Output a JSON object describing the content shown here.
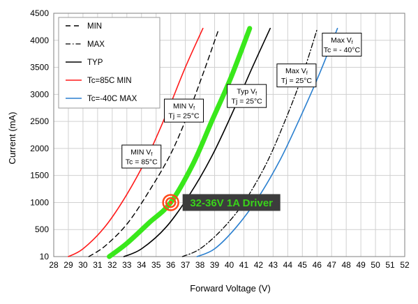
{
  "chart_data": {
    "type": "line",
    "xlabel": "Forward Voltage (V)",
    "ylabel": "Current (mA)",
    "xlim": [
      28,
      52
    ],
    "ylim": [
      10,
      4500
    ],
    "x_ticks": [
      "28",
      "29",
      "30",
      "31",
      "32",
      "33",
      "34",
      "35",
      "36",
      "37",
      "38",
      "39",
      "40",
      "41",
      "42",
      "43",
      "44",
      "45",
      "46",
      "47",
      "48",
      "49",
      "50",
      "51",
      "52"
    ],
    "y_ticks": [
      "10",
      "500",
      "1000",
      "1500",
      "2000",
      "2500",
      "3000",
      "3500",
      "4000",
      "4500"
    ],
    "grid": "major",
    "legend_position": "top-left",
    "series": [
      {
        "name": "MIN",
        "style": "dashed",
        "color": "#000000",
        "x": [
          30.4,
          31.5,
          33.0,
          34.5,
          36.0,
          37.2,
          38.3,
          39.3
        ],
        "y": [
          10,
          200,
          600,
          1200,
          1900,
          2650,
          3450,
          4220
        ]
      },
      {
        "name": "MAX",
        "style": "dashdot",
        "color": "#000000",
        "x": [
          36.8,
          38.0,
          39.5,
          41.0,
          42.5,
          43.8,
          45.0,
          46.0
        ],
        "y": [
          10,
          150,
          500,
          1000,
          1700,
          2500,
          3350,
          4200
        ]
      },
      {
        "name": "TYP",
        "style": "solid",
        "color": "#000000",
        "x": [
          32.8,
          34.0,
          35.7,
          37.3,
          38.8,
          40.2,
          41.5,
          42.8
        ],
        "y": [
          10,
          150,
          550,
          1150,
          1850,
          2650,
          3450,
          4220
        ]
      },
      {
        "name": "Tc=85C MIN",
        "style": "solid",
        "color": "#ff1a1a",
        "x": [
          29.0,
          30.0,
          31.5,
          33.0,
          34.5,
          35.8,
          37.0,
          38.2
        ],
        "y": [
          10,
          150,
          550,
          1150,
          1900,
          2700,
          3500,
          4220
        ]
      },
      {
        "name": "Tc=-40C MAX",
        "style": "solid",
        "color": "#2a7fcf",
        "x": [
          37.8,
          39.0,
          40.5,
          42.0,
          43.5,
          44.9,
          46.2,
          47.4
        ],
        "y": [
          10,
          150,
          550,
          1100,
          1800,
          2600,
          3400,
          4220
        ]
      },
      {
        "name": "",
        "style": "thick",
        "color": "#39e81b",
        "x": [
          31.8,
          33.0,
          34.5,
          36.0,
          37.5,
          38.8,
          40.1,
          41.4
        ],
        "y": [
          10,
          250,
          620,
          1000,
          1700,
          2500,
          3300,
          4220
        ]
      }
    ],
    "annotations": [
      {
        "lines": [
          "MIN V",
          "f"
        ],
        "line2": "Tc = 85°C",
        "line2_sub": "c",
        "x": 34.0,
        "y": 1850
      },
      {
        "lines": [
          "MIN V",
          "f"
        ],
        "line2": "Tj = 25°C",
        "line2_sub": "j",
        "x": 36.9,
        "y": 2700
      },
      {
        "lines": [
          "Typ V",
          "f"
        ],
        "line2": "Tj = 25°C",
        "line2_sub": "j",
        "x": 41.2,
        "y": 2970
      },
      {
        "lines": [
          "Max V",
          "f"
        ],
        "line2": "Tj = 25°C",
        "line2_sub": "j",
        "x": 44.6,
        "y": 3350
      },
      {
        "lines": [
          "Max V",
          "f"
        ],
        "line2": "Tc = - 40°C",
        "line2_sub": "c",
        "x": 47.7,
        "y": 3920
      }
    ],
    "marker": {
      "x": 36.0,
      "y": 1000
    },
    "callout": {
      "text": "32-36V 1A Driver",
      "color": "#39d41a",
      "bg": "#3c3c3c"
    }
  }
}
